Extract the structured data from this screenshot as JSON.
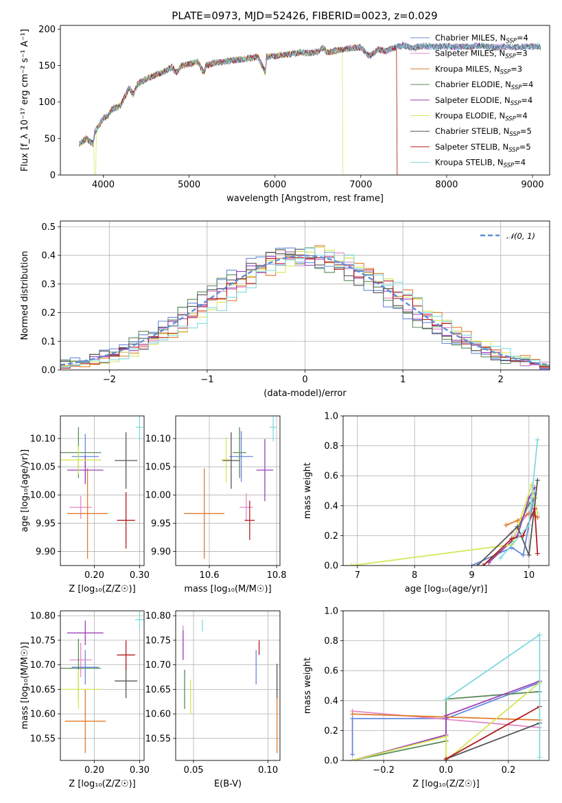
{
  "figure": {
    "title": "PLATE=0973, MJD=52426, FIBERID=0023, z=0.029",
    "series_colors": [
      "#6688dd",
      "#e388c8",
      "#e07a2a",
      "#5a8a5a",
      "#9b3fb3",
      "#d4e655",
      "#555555",
      "#b31b1b",
      "#7fd9e0"
    ]
  },
  "chart_data": [
    {
      "id": "spectrum",
      "type": "line",
      "title": "PLATE=0973, MJD=52426, FIBERID=0023, z=0.029",
      "xlabel": "wavelength [Angstrom, rest frame]",
      "ylabel": "Flux [f_λ 10⁻¹⁷ erg cm⁻² s⁻¹ A⁻¹]",
      "xlim": [
        3500,
        9200
      ],
      "ylim": [
        0,
        205
      ],
      "xticks": [
        4000,
        5000,
        6000,
        7000,
        8000,
        9000
      ],
      "yticks": [
        0,
        50,
        100,
        150,
        200
      ],
      "grid": false,
      "legend_position": "right",
      "legend": [
        {
          "text": "Chabrier MILES, N",
          "sub": "SSP",
          "tail": "=4"
        },
        {
          "text": "Salpeter MILES, N",
          "sub": "SSP",
          "tail": "=3"
        },
        {
          "text": "Kroupa MILES, N",
          "sub": "SSP",
          "tail": "=3"
        },
        {
          "text": "Chabrier ELODIE, N",
          "sub": "SSP",
          "tail": "=4"
        },
        {
          "text": "Salpeter ELODIE, N",
          "sub": "SSP",
          "tail": "=4"
        },
        {
          "text": "Kroupa ELODIE, N",
          "sub": "SSP",
          "tail": "=4"
        },
        {
          "text": "Chabrier STELIB, N",
          "sub": "SSP",
          "tail": "=5"
        },
        {
          "text": "Salpeter STELIB, N",
          "sub": "SSP",
          "tail": "=5"
        },
        {
          "text": "Kroupa STELIB, N",
          "sub": "SSP",
          "tail": "=4"
        }
      ],
      "envelope": {
        "x": [
          3720,
          3800,
          3880,
          3900,
          3950,
          4000,
          4050,
          4100,
          4200,
          4300,
          4350,
          4400,
          4500,
          4600,
          4700,
          4800,
          4860,
          4900,
          5000,
          5100,
          5170,
          5200,
          5300,
          5400,
          5500,
          5600,
          5700,
          5800,
          5890,
          5900,
          6000,
          6100,
          6200,
          6300,
          6400,
          6500,
          6563,
          6600,
          6700,
          6800,
          6900,
          7000,
          7100,
          7200,
          7300,
          7400,
          7500,
          7600,
          7700,
          7800,
          7900,
          8000,
          8100,
          8200,
          8300,
          8400,
          8500,
          8600,
          8700,
          8800,
          8900,
          9000,
          9100
        ],
        "y": [
          42,
          50,
          43,
          58,
          68,
          78,
          80,
          90,
          95,
          120,
          110,
          125,
          132,
          137,
          141,
          148,
          140,
          149,
          152,
          155,
          140,
          150,
          154,
          155,
          157,
          158,
          160,
          162,
          140,
          162,
          163,
          165,
          166,
          168,
          167,
          169,
          175,
          168,
          170,
          172,
          174,
          175,
          163,
          172,
          170,
          175,
          178,
          173,
          177,
          176,
          176,
          177,
          175,
          176,
          176,
          177,
          175,
          175,
          176,
          175,
          176,
          176,
          176
        ]
      },
      "dropouts": [
        {
          "series": "Kroupa ELODIE",
          "x_start": 3920,
          "x_end": 6780
        },
        {
          "series": "Kroupa ELODIE",
          "x_end_cut": 6780
        },
        {
          "series": "Salpeter STELIB",
          "x_end_cut": 7420
        },
        {
          "series": "Kroupa MILES",
          "x_end_cut": 7420
        }
      ]
    },
    {
      "id": "residuals",
      "type": "histogram",
      "xlabel": "(data-model)/error",
      "ylabel": "Normed distribution",
      "xlim": [
        -2.5,
        2.5
      ],
      "ylim": [
        0,
        0.52
      ],
      "xticks": [
        -2,
        -1,
        0,
        1,
        2
      ],
      "yticks": [
        0.0,
        0.1,
        0.2,
        0.3,
        0.4,
        0.5
      ],
      "grid": true,
      "legend_position": "top-right",
      "legend": [
        {
          "text": "𝒩(0, 1)"
        }
      ],
      "bin_width": 0.1,
      "gaussian": {
        "mean": 0,
        "sigma": 1
      },
      "jitter_amplitude": 0.06
    },
    {
      "id": "age-vs-Z",
      "type": "errorbar",
      "xlabel": "Z [log₁₀(Z/Z☉)]",
      "ylabel": "age  [log₁₀(age/yr)]",
      "xlim": [
        0.125,
        0.31
      ],
      "ylim": [
        9.875,
        10.14
      ],
      "xticks": [
        0.2,
        0.3
      ],
      "yticks": [
        9.9,
        9.95,
        10.0,
        10.05,
        10.1
      ],
      "grid": true,
      "points": [
        {
          "x": 0.18,
          "y": 10.068,
          "xerr": 0.03,
          "yerr": 0.04
        },
        {
          "x": 0.17,
          "y": 9.978,
          "xerr": 0.025,
          "yerr": 0.02
        },
        {
          "x": 0.185,
          "y": 9.967,
          "xerr": 0.045,
          "yerr": 0.08
        },
        {
          "x": 0.165,
          "y": 10.075,
          "xerr": 0.05,
          "yerr": 0.045
        },
        {
          "x": 0.18,
          "y": 10.044,
          "xerr": 0.04,
          "yerr": 0.025
        },
        {
          "x": 0.165,
          "y": 10.062,
          "xerr": 0.05,
          "yerr": 0.025
        },
        {
          "x": 0.27,
          "y": 10.061,
          "xerr": 0.025,
          "yerr": 0.05
        },
        {
          "x": 0.27,
          "y": 9.955,
          "xerr": 0.02,
          "yerr": 0.05
        },
        {
          "x": 0.3,
          "y": 10.12,
          "xerr": 0.008,
          "yerr": 0.025
        }
      ]
    },
    {
      "id": "age-vs-mass",
      "type": "errorbar",
      "xlabel": "mass [log₁₀(M/M☉)]",
      "ylabel": "",
      "xlim": [
        10.5,
        10.81
      ],
      "ylim": [
        9.875,
        10.14
      ],
      "xticks": [
        10.6,
        10.8
      ],
      "yticks": [
        9.9,
        9.95,
        10.0,
        10.05,
        10.1
      ],
      "grid": true,
      "points": [
        {
          "x": 10.695,
          "y": 10.068,
          "xerr": 0.035,
          "yerr": 0.045
        },
        {
          "x": 10.71,
          "y": 9.978,
          "xerr": 0.02,
          "yerr": 0.025
        },
        {
          "x": 10.585,
          "y": 9.967,
          "xerr": 0.06,
          "yerr": 0.08
        },
        {
          "x": 10.69,
          "y": 10.075,
          "xerr": 0.02,
          "yerr": 0.045
        },
        {
          "x": 10.765,
          "y": 10.044,
          "xerr": 0.025,
          "yerr": 0.055
        },
        {
          "x": 10.65,
          "y": 10.062,
          "xerr": 0.015,
          "yerr": 0.04
        },
        {
          "x": 10.665,
          "y": 10.061,
          "xerr": 0.025,
          "yerr": 0.05
        },
        {
          "x": 10.72,
          "y": 9.955,
          "xerr": 0.015,
          "yerr": 0.035
        },
        {
          "x": 10.79,
          "y": 10.12,
          "xerr": 0.01,
          "yerr": 0.025
        }
      ]
    },
    {
      "id": "weight-vs-age",
      "type": "line",
      "xlabel": "age  [log₁₀(age/yr)]",
      "ylabel": "mass weight",
      "xlim": [
        6.75,
        10.35
      ],
      "ylim": [
        0,
        1.0
      ],
      "xticks": [
        7,
        8,
        9,
        10
      ],
      "yticks": [
        0.0,
        0.2,
        0.4,
        0.6,
        0.8,
        1.0
      ],
      "grid": true,
      "series": [
        {
          "x": [
            9.0,
            9.7,
            9.9,
            10.1
          ],
          "y": [
            0.0,
            0.12,
            0.07,
            0.48
          ]
        },
        {
          "x": [
            9.7,
            10.0,
            10.15
          ],
          "y": [
            0.22,
            0.35,
            0.33
          ]
        },
        {
          "x": [
            9.6,
            9.8,
            10.0,
            10.15
          ],
          "y": [
            0.27,
            0.3,
            0.35,
            0.32
          ]
        },
        {
          "x": [
            9.2,
            9.7,
            10.0,
            10.1
          ],
          "y": [
            0.0,
            0.16,
            0.41,
            0.45
          ]
        },
        {
          "x": [
            9.3,
            9.8,
            10.0,
            10.1
          ],
          "y": [
            0.02,
            0.2,
            0.45,
            0.52
          ]
        },
        {
          "x": [
            6.9,
            9.7,
            10.05,
            10.15
          ],
          "y": [
            0.0,
            0.14,
            0.54,
            0.35
          ]
        },
        {
          "x": [
            9.1,
            9.8,
            10.0,
            10.15
          ],
          "y": [
            0.0,
            0.26,
            0.07,
            0.57
          ]
        },
        {
          "x": [
            9.2,
            9.7,
            9.9,
            10.1,
            10.15
          ],
          "y": [
            0.0,
            0.18,
            0.2,
            0.38,
            0.08
          ]
        },
        {
          "x": [
            9.5,
            10.0,
            10.15
          ],
          "y": [
            0.05,
            0.27,
            0.84
          ]
        }
      ]
    },
    {
      "id": "mass-vs-Z",
      "type": "errorbar",
      "xlabel": "Z [log₁₀(Z/Z☉)]",
      "ylabel": "mass [log₁₀(M/M☉)]",
      "xlim": [
        0.125,
        0.31
      ],
      "ylim": [
        10.505,
        10.81
      ],
      "xticks": [
        0.2,
        0.3
      ],
      "yticks": [
        10.55,
        10.6,
        10.65,
        10.7,
        10.75,
        10.8
      ],
      "grid": true,
      "points": [
        {
          "x": 0.18,
          "y": 10.695,
          "xerr": 0.03,
          "yerr": 0.035
        },
        {
          "x": 0.17,
          "y": 10.71,
          "xerr": 0.025,
          "yerr": 0.035
        },
        {
          "x": 0.18,
          "y": 10.585,
          "xerr": 0.045,
          "yerr": 0.065
        },
        {
          "x": 0.165,
          "y": 10.693,
          "xerr": 0.05,
          "yerr": 0.06
        },
        {
          "x": 0.18,
          "y": 10.765,
          "xerr": 0.04,
          "yerr": 0.025
        },
        {
          "x": 0.165,
          "y": 10.65,
          "xerr": 0.05,
          "yerr": 0.04
        },
        {
          "x": 0.27,
          "y": 10.667,
          "xerr": 0.025,
          "yerr": 0.035
        },
        {
          "x": 0.27,
          "y": 10.72,
          "xerr": 0.02,
          "yerr": 0.03
        },
        {
          "x": 0.3,
          "y": 10.792,
          "xerr": 0.01,
          "yerr": 0.02
        }
      ]
    },
    {
      "id": "mass-vs-EBV",
      "type": "errorbar",
      "xlabel": "E(B-V)",
      "ylabel": "",
      "xlim": [
        0.038,
        0.108
      ],
      "ylim": [
        10.505,
        10.81
      ],
      "xticks": [
        0.05,
        0.1
      ],
      "yticks": [
        10.55,
        10.6,
        10.65,
        10.7,
        10.75,
        10.8
      ],
      "grid": true,
      "points": [
        {
          "x": 0.092,
          "y": 10.695,
          "xerr": 0.0,
          "yerr": 0.035
        },
        {
          "x": 0.043,
          "y": 10.745,
          "xerr": 0.0,
          "yerr": 0.035
        },
        {
          "x": 0.106,
          "y": 10.585,
          "xerr": 0.0,
          "yerr": 0.065
        },
        {
          "x": 0.044,
          "y": 10.65,
          "xerr": 0.0,
          "yerr": 0.04
        },
        {
          "x": 0.043,
          "y": 10.74,
          "xerr": 0.0,
          "yerr": 0.03
        },
        {
          "x": 0.048,
          "y": 10.635,
          "xerr": 0.0,
          "yerr": 0.035
        },
        {
          "x": 0.106,
          "y": 10.667,
          "xerr": 0.0,
          "yerr": 0.035
        },
        {
          "x": 0.094,
          "y": 10.735,
          "xerr": 0.0,
          "yerr": 0.015
        },
        {
          "x": 0.056,
          "y": 10.78,
          "xerr": 0.0,
          "yerr": 0.012
        }
      ]
    },
    {
      "id": "weight-vs-Z",
      "type": "line",
      "xlabel": "Z [log₁₀(Z/Z☉)]",
      "ylabel": "mass weight",
      "xlim": [
        -0.33,
        0.33
      ],
      "ylim": [
        0,
        1.0
      ],
      "xticks": [
        -0.2,
        0.0,
        0.2
      ],
      "yticks": [
        0.0,
        0.2,
        0.4,
        0.6,
        0.8,
        1.0
      ],
      "grid": true,
      "series": [
        {
          "x": [
            -0.3,
            -0.3,
            0.0,
            0.3
          ],
          "y": [
            0.04,
            0.28,
            0.28,
            0.52
          ]
        },
        {
          "x": [
            -0.3,
            0.3
          ],
          "y": [
            0.33,
            0.22
          ]
        },
        {
          "x": [
            -0.3,
            0.3
          ],
          "y": [
            0.31,
            0.27
          ]
        },
        {
          "x": [
            -0.3,
            0.0,
            0.0,
            0.3
          ],
          "y": [
            0.0,
            0.13,
            0.41,
            0.46
          ]
        },
        {
          "x": [
            -0.3,
            0.0,
            0.0,
            0.3
          ],
          "y": [
            0.0,
            0.17,
            0.3,
            0.53
          ]
        },
        {
          "x": [
            -0.3,
            0.0,
            0.0,
            0.3
          ],
          "y": [
            0.0,
            0.16,
            0.0,
            0.52
          ]
        },
        {
          "x": [
            0.0,
            0.0,
            0.3
          ],
          "y": [
            0.0,
            0.01,
            0.25
          ]
        },
        {
          "x": [
            0.0,
            0.3
          ],
          "y": [
            0.01,
            0.36
          ]
        },
        {
          "x": [
            0.0,
            0.3,
            0.3
          ],
          "y": [
            0.41,
            0.84,
            0.02
          ]
        }
      ]
    }
  ]
}
